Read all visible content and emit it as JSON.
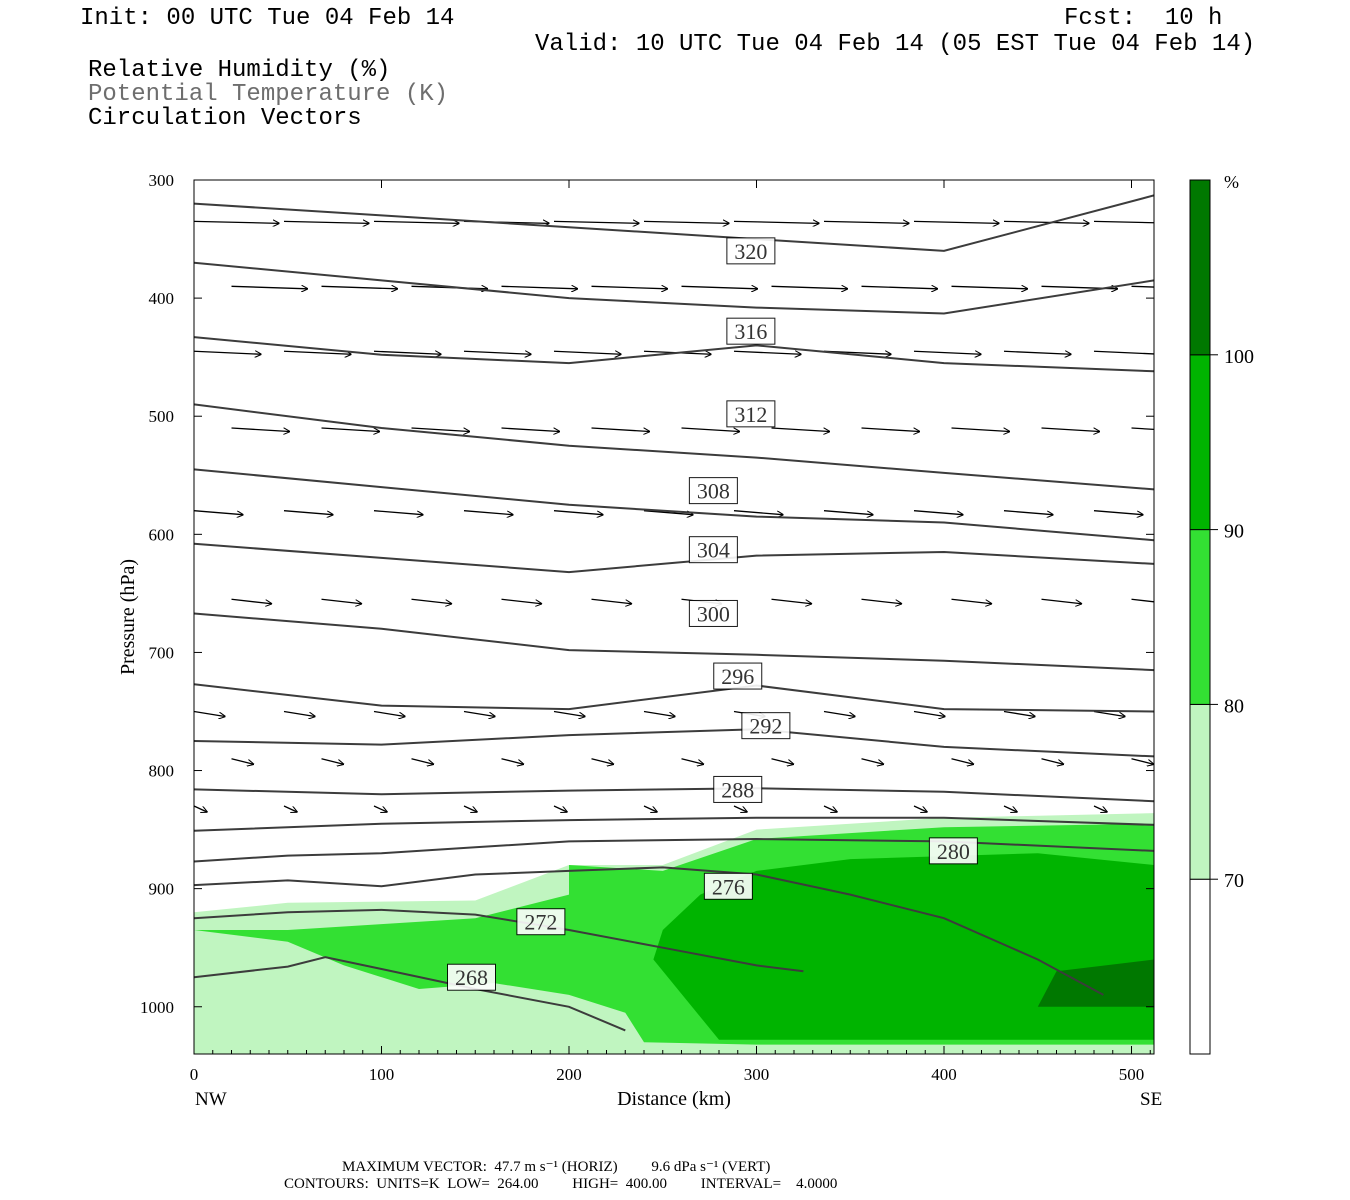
{
  "header": {
    "init": "Init: 00 UTC Tue 04 Feb 14",
    "fcst": "Fcst:  10 h",
    "valid": "Valid: 10 UTC Tue 04 Feb 14 (05 EST Tue 04 Feb 14)",
    "fields": [
      "Relative Humidity (%)",
      "Potential Temperature (K)",
      "Circulation Vectors"
    ]
  },
  "chart_data": {
    "type": "contour-cross-section",
    "xlabel": "Distance (km)",
    "ylabel": "Pressure (hPa)",
    "x_endpoints": [
      "NW",
      "SE"
    ],
    "xlim": [
      0,
      512
    ],
    "ylim_hpa": [
      1040,
      300
    ],
    "x_ticks": [
      "0",
      "100",
      "200",
      "300",
      "400",
      "500"
    ],
    "y_ticks": [
      "300",
      "400",
      "500",
      "600",
      "700",
      "800",
      "900",
      "1000"
    ],
    "x_tick_values": [
      0,
      100,
      200,
      300,
      400,
      500
    ],
    "y_tick_values": [
      300,
      400,
      500,
      600,
      700,
      800,
      900,
      1000
    ],
    "colorbar": {
      "unit": "%",
      "levels": [
        "70",
        "80",
        "90",
        "100"
      ],
      "colors": [
        "#ffffff",
        "#c0f5c0",
        "#33e033",
        "#00b400",
        "#007800"
      ]
    },
    "theta_contours": [
      {
        "label": "268",
        "label_at": [
          148,
          975
        ],
        "points": [
          [
            0,
            975
          ],
          [
            50,
            966
          ],
          [
            70,
            958
          ],
          [
            100,
            968
          ],
          [
            150,
            985
          ],
          [
            200,
            1000
          ],
          [
            230,
            1020
          ]
        ]
      },
      {
        "label": "272",
        "label_at": [
          185,
          928
        ],
        "points": [
          [
            0,
            925
          ],
          [
            50,
            920
          ],
          [
            100,
            918
          ],
          [
            150,
            922
          ],
          [
            200,
            935
          ],
          [
            250,
            950
          ],
          [
            300,
            965
          ],
          [
            325,
            970
          ]
        ]
      },
      {
        "label": "276",
        "label_at": [
          285,
          898
        ],
        "points": [
          [
            0,
            897
          ],
          [
            50,
            893
          ],
          [
            100,
            898
          ],
          [
            150,
            888
          ],
          [
            200,
            885
          ],
          [
            250,
            882
          ],
          [
            300,
            888
          ],
          [
            350,
            905
          ],
          [
            400,
            925
          ],
          [
            450,
            960
          ],
          [
            485,
            990
          ]
        ]
      },
      {
        "label": "280",
        "label_at": [
          405,
          868
        ],
        "points": [
          [
            0,
            877
          ],
          [
            50,
            872
          ],
          [
            100,
            870
          ],
          [
            150,
            865
          ],
          [
            200,
            860
          ],
          [
            300,
            858
          ],
          [
            400,
            860
          ],
          [
            512,
            868
          ]
        ]
      },
      {
        "label": "",
        "label_at": null,
        "points": [
          [
            0,
            851
          ],
          [
            100,
            845
          ],
          [
            200,
            842
          ],
          [
            300,
            840
          ],
          [
            400,
            840
          ],
          [
            512,
            846
          ]
        ]
      },
      {
        "label": "288",
        "label_at": [
          290,
          816
        ],
        "points": [
          [
            0,
            816
          ],
          [
            100,
            820
          ],
          [
            200,
            817
          ],
          [
            300,
            815
          ],
          [
            400,
            818
          ],
          [
            512,
            826
          ]
        ]
      },
      {
        "label": "292",
        "label_at": [
          305,
          762
        ],
        "points": [
          [
            0,
            775
          ],
          [
            100,
            778
          ],
          [
            200,
            770
          ],
          [
            300,
            765
          ],
          [
            400,
            780
          ],
          [
            512,
            788
          ]
        ]
      },
      {
        "label": "296",
        "label_at": [
          290,
          720
        ],
        "points": [
          [
            0,
            727
          ],
          [
            100,
            745
          ],
          [
            200,
            748
          ],
          [
            300,
            728
          ],
          [
            400,
            748
          ],
          [
            512,
            750
          ]
        ]
      },
      {
        "label": "300",
        "label_at": [
          277,
          667
        ],
        "points": [
          [
            0,
            667
          ],
          [
            100,
            680
          ],
          [
            200,
            698
          ],
          [
            300,
            702
          ],
          [
            400,
            707
          ],
          [
            512,
            715
          ]
        ]
      },
      {
        "label": "304",
        "label_at": [
          277,
          613
        ],
        "points": [
          [
            0,
            608
          ],
          [
            100,
            620
          ],
          [
            200,
            632
          ],
          [
            300,
            618
          ],
          [
            400,
            615
          ],
          [
            512,
            625
          ]
        ]
      },
      {
        "label": "308",
        "label_at": [
          277,
          563
        ],
        "points": [
          [
            0,
            545
          ],
          [
            100,
            560
          ],
          [
            200,
            575
          ],
          [
            300,
            585
          ],
          [
            400,
            590
          ],
          [
            512,
            605
          ]
        ]
      },
      {
        "label": "312",
        "label_at": [
          297,
          498
        ],
        "points": [
          [
            0,
            490
          ],
          [
            100,
            510
          ],
          [
            200,
            525
          ],
          [
            300,
            535
          ],
          [
            400,
            548
          ],
          [
            512,
            562
          ]
        ]
      },
      {
        "label": "316",
        "label_at": [
          297,
          428
        ],
        "points": [
          [
            0,
            433
          ],
          [
            100,
            448
          ],
          [
            200,
            455
          ],
          [
            300,
            440
          ],
          [
            400,
            455
          ],
          [
            512,
            462
          ]
        ]
      },
      {
        "label": "320",
        "label_at": [
          297,
          360
        ],
        "points": [
          [
            0,
            370
          ],
          [
            100,
            385
          ],
          [
            200,
            400
          ],
          [
            300,
            408
          ],
          [
            400,
            413
          ],
          [
            512,
            385
          ]
        ]
      },
      {
        "label": "",
        "label_at": null,
        "points": [
          [
            0,
            320
          ],
          [
            100,
            330
          ],
          [
            200,
            340
          ],
          [
            300,
            350
          ],
          [
            400,
            360
          ],
          [
            512,
            313
          ]
        ]
      }
    ],
    "rh_regions": [
      {
        "level": "70",
        "points": [
          [
            0,
            920
          ],
          [
            50,
            912
          ],
          [
            150,
            910
          ],
          [
            200,
            880
          ],
          [
            250,
            880
          ],
          [
            300,
            850
          ],
          [
            400,
            840
          ],
          [
            512,
            836
          ],
          [
            512,
            1040
          ],
          [
            0,
            1040
          ]
        ]
      },
      {
        "level": "80",
        "points": [
          [
            0,
            935
          ],
          [
            50,
            945
          ],
          [
            80,
            965
          ],
          [
            120,
            985
          ],
          [
            160,
            980
          ],
          [
            200,
            990
          ],
          [
            230,
            1005
          ],
          [
            240,
            1030
          ],
          [
            300,
            1032
          ],
          [
            512,
            1032
          ],
          [
            512,
            845
          ],
          [
            400,
            848
          ],
          [
            300,
            858
          ],
          [
            250,
            885
          ],
          [
            200,
            880
          ],
          [
            200,
            905
          ],
          [
            150,
            925
          ],
          [
            100,
            930
          ],
          [
            50,
            935
          ]
        ]
      },
      {
        "level": "90",
        "points": [
          [
            280,
            1028
          ],
          [
            512,
            1028
          ],
          [
            512,
            880
          ],
          [
            450,
            870
          ],
          [
            350,
            875
          ],
          [
            300,
            885
          ],
          [
            270,
            905
          ],
          [
            250,
            935
          ],
          [
            245,
            960
          ]
        ]
      },
      {
        "level": "100",
        "points": [
          [
            450,
            1000
          ],
          [
            512,
            1000
          ],
          [
            512,
            960
          ],
          [
            460,
            970
          ]
        ]
      }
    ],
    "vectors_note": "Circulation vectors generally point east (left to right, NW to SE), larger aloft, weak near surface."
  },
  "footer": {
    "max_vector": "MAXIMUM VECTOR:  47.7 m s⁻¹ (HORIZ)         9.6 dPa s⁻¹ (VERT)",
    "contours": "CONTOURS:  UNITS=K  LOW=  264.00         HIGH=  400.00         INTERVAL=    4.0000"
  }
}
